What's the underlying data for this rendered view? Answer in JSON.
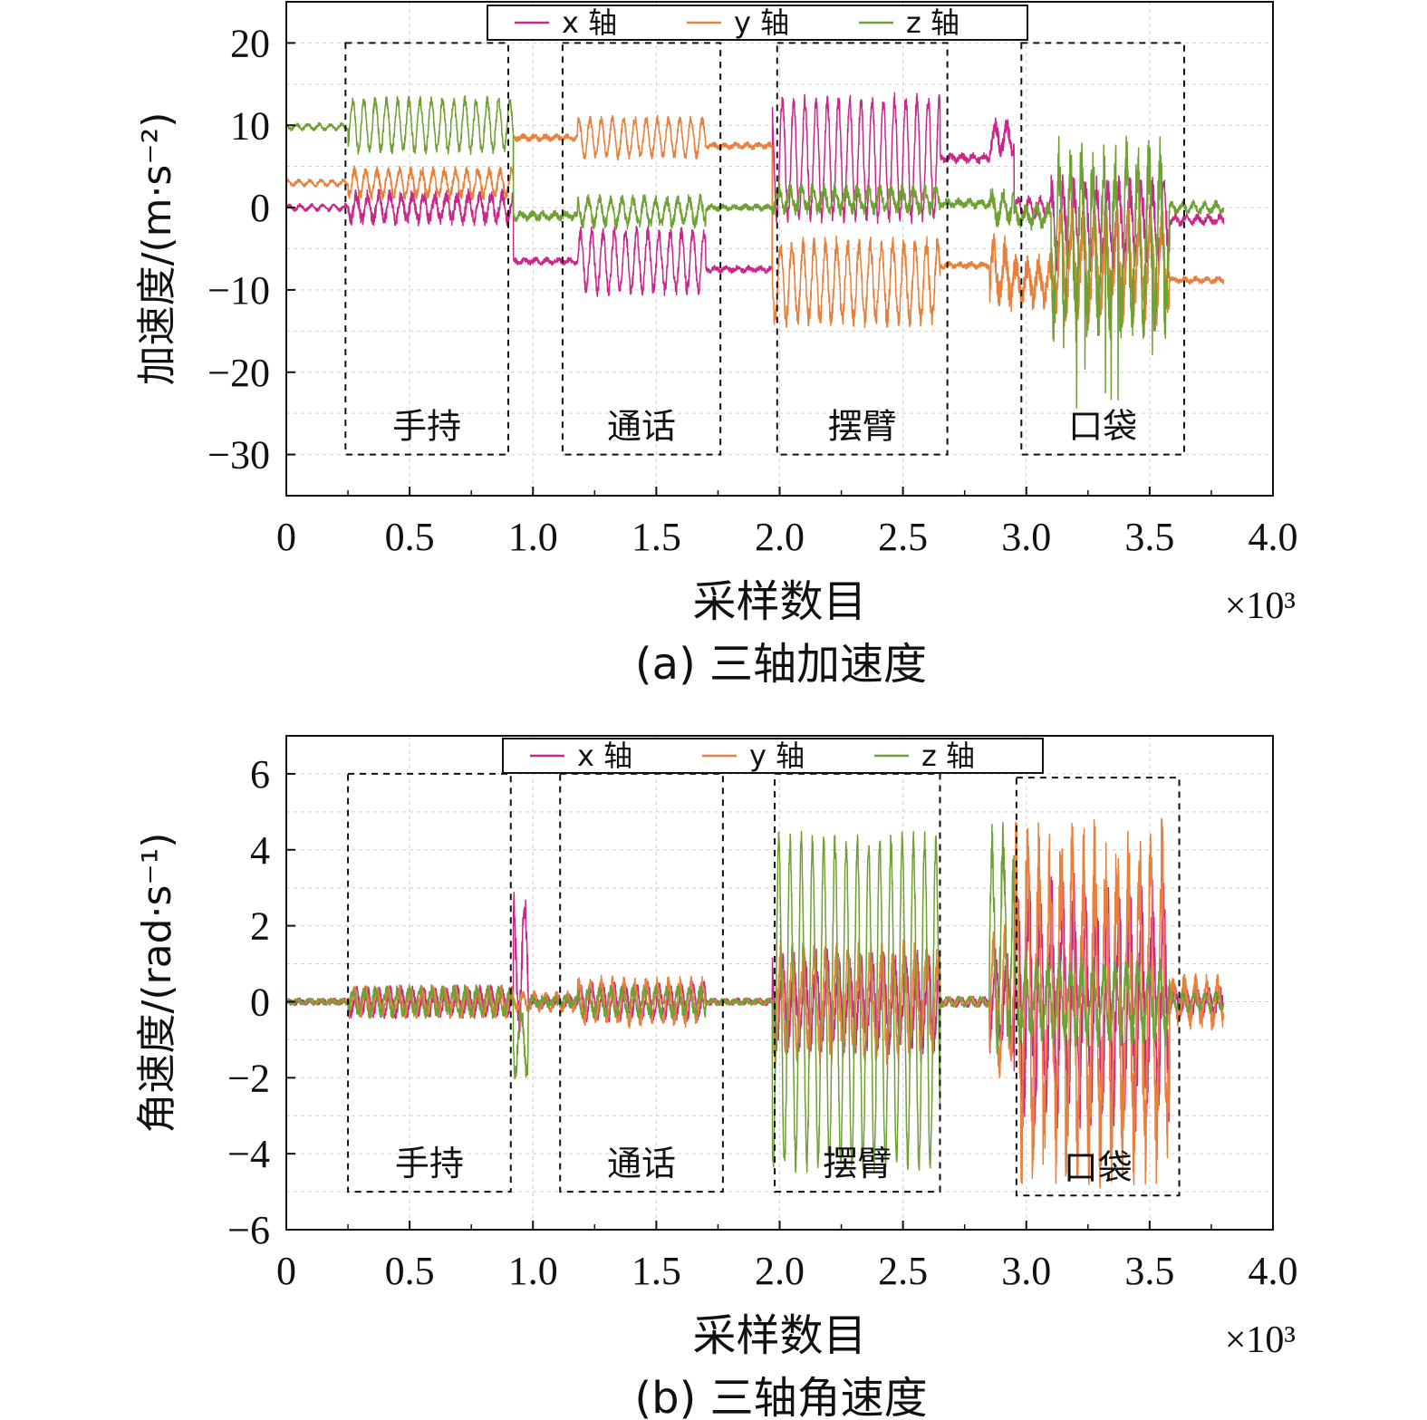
{
  "colors": {
    "x": "#c8288c",
    "y": "#e8803c",
    "z": "#6ea032",
    "frame": "#111111",
    "grid": "#d0d0d0"
  },
  "chart_data": [
    {
      "type": "line",
      "caption": "(a) 三轴加速度",
      "xlabel": "采样数目",
      "x_multiplier": "×10³",
      "ylabel": "加速度/(m·s⁻²)",
      "xlim": [
        0,
        4.0
      ],
      "ylim": [
        -35,
        25
      ],
      "xticks": [
        0,
        0.5,
        1.0,
        1.5,
        2.0,
        2.5,
        3.0,
        3.5,
        4.0
      ],
      "xtick_labels": [
        "0",
        "0.5",
        "1.0",
        "1.5",
        "2.0",
        "2.5",
        "3.0",
        "3.5",
        "4.0"
      ],
      "yticks": [
        -30,
        -20,
        -10,
        0,
        10,
        20
      ],
      "ytick_labels": [
        "−30",
        "−20",
        "−10",
        "0",
        "10",
        "20"
      ],
      "grid": true,
      "legend_placement": "top-center",
      "series": [
        {
          "name": "x 轴",
          "key": "x",
          "segments": [
            {
              "x0": 0.0,
              "x1": 0.25,
              "base": 0,
              "amp": 0.3,
              "noise": 0.2
            },
            {
              "x0": 0.25,
              "x1": 0.92,
              "base": 0,
              "amp": 1.5,
              "noise": 0.8
            },
            {
              "x0": 0.92,
              "x1": 1.18,
              "base": -6.5,
              "amp": 0.2,
              "noise": 0.3
            },
            {
              "x0": 1.18,
              "x1": 1.7,
              "base": -6.5,
              "amp": 3.5,
              "noise": 0.8
            },
            {
              "x0": 1.7,
              "x1": 1.97,
              "base": -7.5,
              "amp": 0.2,
              "noise": 0.3
            },
            {
              "x0": 1.97,
              "x1": 2.65,
              "base": 6,
              "amp": 7.0,
              "noise": 1.0
            },
            {
              "x0": 2.65,
              "x1": 2.85,
              "base": 6,
              "amp": 0.3,
              "noise": 0.4
            },
            {
              "x0": 2.85,
              "x1": 2.95,
              "base": 8.5,
              "amp": 1.5,
              "noise": 1.0
            },
            {
              "x0": 2.95,
              "x1": 3.1,
              "base": 0,
              "amp": 1.0,
              "noise": 0.5
            },
            {
              "x0": 3.1,
              "x1": 3.58,
              "base": -2,
              "amp": 4.0,
              "noise": 2.0
            },
            {
              "x0": 3.58,
              "x1": 3.8,
              "base": -1.5,
              "amp": 0.4,
              "noise": 0.4
            }
          ]
        },
        {
          "name": "y 轴",
          "key": "y",
          "segments": [
            {
              "x0": 0.0,
              "x1": 0.25,
              "base": 3,
              "amp": 0.3,
              "noise": 0.2
            },
            {
              "x0": 0.25,
              "x1": 0.92,
              "base": 3,
              "amp": 1.5,
              "noise": 0.6
            },
            {
              "x0": 0.92,
              "x1": 1.18,
              "base": 8.5,
              "amp": 0.2,
              "noise": 0.3
            },
            {
              "x0": 1.18,
              "x1": 1.7,
              "base": 8.5,
              "amp": 2.2,
              "noise": 0.5
            },
            {
              "x0": 1.7,
              "x1": 1.97,
              "base": 7.5,
              "amp": 0.2,
              "noise": 0.3
            },
            {
              "x0": 1.97,
              "x1": 2.65,
              "base": -9,
              "amp": 4.5,
              "noise": 1.2
            },
            {
              "x0": 2.65,
              "x1": 2.85,
              "base": -7,
              "amp": 0.2,
              "noise": 0.3
            },
            {
              "x0": 2.85,
              "x1": 2.95,
              "base": -8,
              "amp": 3.0,
              "noise": 2.0
            },
            {
              "x0": 2.95,
              "x1": 3.1,
              "base": -9,
              "amp": 2.0,
              "noise": 1.5
            },
            {
              "x0": 3.1,
              "x1": 3.58,
              "base": -7,
              "amp": 5.0,
              "noise": 2.5
            },
            {
              "x0": 3.58,
              "x1": 3.8,
              "base": -8.8,
              "amp": 0.2,
              "noise": 0.3
            }
          ]
        },
        {
          "name": "z 轴",
          "key": "z",
          "segments": [
            {
              "x0": 0.0,
              "x1": 0.25,
              "base": 9.8,
              "amp": 0.3,
              "noise": 0.2
            },
            {
              "x0": 0.25,
              "x1": 0.92,
              "base": 10,
              "amp": 3.0,
              "noise": 0.6
            },
            {
              "x0": 0.92,
              "x1": 1.18,
              "base": -1,
              "amp": 0.3,
              "noise": 0.4
            },
            {
              "x0": 1.18,
              "x1": 1.7,
              "base": -0.5,
              "amp": 1.5,
              "noise": 0.7
            },
            {
              "x0": 1.7,
              "x1": 1.97,
              "base": 0,
              "amp": 0.2,
              "noise": 0.3
            },
            {
              "x0": 1.97,
              "x1": 2.65,
              "base": 1,
              "amp": 1.2,
              "noise": 0.8
            },
            {
              "x0": 2.65,
              "x1": 2.85,
              "base": 0.5,
              "amp": 0.3,
              "noise": 0.4
            },
            {
              "x0": 2.85,
              "x1": 2.95,
              "base": 0,
              "amp": 1.5,
              "noise": 1.0
            },
            {
              "x0": 2.95,
              "x1": 3.1,
              "base": -1,
              "amp": 1.0,
              "noise": 0.8
            },
            {
              "x0": 3.1,
              "x1": 3.58,
              "base": -4,
              "amp": 9.0,
              "noise": 4.0,
              "spike": -22
            },
            {
              "x0": 3.58,
              "x1": 3.8,
              "base": 0,
              "amp": 0.5,
              "noise": 0.4
            }
          ]
        }
      ],
      "regions": [
        {
          "label": "手持",
          "x0": 0.24,
          "x1": 0.9,
          "y0": -30,
          "y1": 20
        },
        {
          "label": "通话",
          "x0": 1.12,
          "x1": 1.76,
          "y0": -30,
          "y1": 20
        },
        {
          "label": "摆臂",
          "x0": 1.99,
          "x1": 2.68,
          "y0": -30,
          "y1": 20
        },
        {
          "label": "口袋",
          "x0": 2.98,
          "x1": 3.64,
          "y0": -30,
          "y1": 20
        }
      ]
    },
    {
      "type": "line",
      "caption": "(b) 三轴角速度",
      "xlabel": "采样数目",
      "x_multiplier": "×10³",
      "ylabel": "角速度/(rad·s⁻¹)",
      "xlim": [
        0,
        4.0
      ],
      "ylim": [
        -6,
        7
      ],
      "xticks": [
        0,
        0.5,
        1.0,
        1.5,
        2.0,
        2.5,
        3.0,
        3.5,
        4.0
      ],
      "xtick_labels": [
        "0",
        "0.5",
        "1.0",
        "1.5",
        "2.0",
        "2.5",
        "3.0",
        "3.5",
        "4.0"
      ],
      "yticks": [
        -6,
        -4,
        -2,
        0,
        2,
        4,
        6
      ],
      "ytick_labels": [
        "−6",
        "−4",
        "−2",
        "0",
        "2",
        "4",
        "6"
      ],
      "grid": true,
      "legend_placement": "top-center",
      "series": [
        {
          "name": "x 轴",
          "key": "x",
          "segments": [
            {
              "x0": 0.0,
              "x1": 0.25,
              "base": 0,
              "amp": 0.05,
              "noise": 0.05
            },
            {
              "x0": 0.25,
              "x1": 0.92,
              "base": 0,
              "amp": 0.3,
              "noise": 0.15
            },
            {
              "x0": 0.92,
              "x1": 0.98,
              "base": 1.0,
              "amp": 1.5,
              "noise": 0.5
            },
            {
              "x0": 0.98,
              "x1": 1.18,
              "base": 0,
              "amp": 0.1,
              "noise": 0.1
            },
            {
              "x0": 1.18,
              "x1": 1.7,
              "base": 0,
              "amp": 0.4,
              "noise": 0.15
            },
            {
              "x0": 1.7,
              "x1": 1.97,
              "base": 0,
              "amp": 0.05,
              "noise": 0.05
            },
            {
              "x0": 1.97,
              "x1": 2.65,
              "base": 0,
              "amp": 1.0,
              "noise": 0.4
            },
            {
              "x0": 2.65,
              "x1": 2.85,
              "base": 0,
              "amp": 0.1,
              "noise": 0.05
            },
            {
              "x0": 2.85,
              "x1": 2.95,
              "base": 0,
              "amp": 1.0,
              "noise": 0.4
            },
            {
              "x0": 2.95,
              "x1": 3.58,
              "base": 0,
              "amp": 2.5,
              "noise": 1.0
            },
            {
              "x0": 3.58,
              "x1": 3.8,
              "base": 0,
              "amp": 0.3,
              "noise": 0.15
            }
          ]
        },
        {
          "name": "y 轴",
          "key": "y",
          "segments": [
            {
              "x0": 0.0,
              "x1": 0.25,
              "base": 0,
              "amp": 0.05,
              "noise": 0.05
            },
            {
              "x0": 0.25,
              "x1": 0.92,
              "base": 0,
              "amp": 0.3,
              "noise": 0.15
            },
            {
              "x0": 0.92,
              "x1": 1.18,
              "base": 0,
              "amp": 0.2,
              "noise": 0.1
            },
            {
              "x0": 1.18,
              "x1": 1.7,
              "base": 0,
              "amp": 0.5,
              "noise": 0.2
            },
            {
              "x0": 1.7,
              "x1": 1.97,
              "base": 0,
              "amp": 0.05,
              "noise": 0.05
            },
            {
              "x0": 1.97,
              "x1": 2.65,
              "base": 0,
              "amp": 1.2,
              "noise": 0.5
            },
            {
              "x0": 2.65,
              "x1": 2.85,
              "base": 0,
              "amp": 0.1,
              "noise": 0.05
            },
            {
              "x0": 2.85,
              "x1": 2.95,
              "base": 0,
              "amp": 1.5,
              "noise": 0.6
            },
            {
              "x0": 2.95,
              "x1": 3.58,
              "base": 0,
              "amp": 3.5,
              "noise": 1.5
            },
            {
              "x0": 3.58,
              "x1": 3.8,
              "base": 0,
              "amp": 0.5,
              "noise": 0.3
            }
          ]
        },
        {
          "name": "z 轴",
          "key": "z",
          "segments": [
            {
              "x0": 0.0,
              "x1": 0.25,
              "base": 0,
              "amp": 0.05,
              "noise": 0.05
            },
            {
              "x0": 0.25,
              "x1": 0.92,
              "base": 0,
              "amp": 0.3,
              "noise": 0.15
            },
            {
              "x0": 0.92,
              "x1": 0.98,
              "base": -1.0,
              "amp": 0.8,
              "noise": 0.3
            },
            {
              "x0": 0.98,
              "x1": 1.18,
              "base": 0,
              "amp": 0.1,
              "noise": 0.1
            },
            {
              "x0": 1.18,
              "x1": 1.7,
              "base": 0,
              "amp": 0.3,
              "noise": 0.15
            },
            {
              "x0": 1.7,
              "x1": 1.97,
              "base": 0,
              "amp": 0.05,
              "noise": 0.05
            },
            {
              "x0": 1.97,
              "x1": 2.65,
              "base": 0,
              "amp": 4.2,
              "noise": 0.3
            },
            {
              "x0": 2.65,
              "x1": 2.85,
              "base": 0,
              "amp": 0.1,
              "noise": 0.05
            },
            {
              "x0": 2.85,
              "x1": 2.95,
              "base": 1.5,
              "amp": 2.5,
              "noise": 0.8
            },
            {
              "x0": 2.95,
              "x1": 3.58,
              "base": 0,
              "amp": 0.8,
              "noise": 0.4
            },
            {
              "x0": 3.58,
              "x1": 3.8,
              "base": 0,
              "amp": 0.2,
              "noise": 0.1
            }
          ]
        }
      ],
      "regions": [
        {
          "label": "手持",
          "x0": 0.25,
          "x1": 0.91,
          "y0": -5,
          "y1": 6
        },
        {
          "label": "通话",
          "x0": 1.11,
          "x1": 1.77,
          "y0": -5,
          "y1": 6
        },
        {
          "label": "摆臂",
          "x0": 1.98,
          "x1": 2.65,
          "y0": -5,
          "y1": 6
        },
        {
          "label": "口袋",
          "x0": 2.96,
          "x1": 3.62,
          "y0": -5.1,
          "y1": 5.9
        }
      ]
    }
  ]
}
